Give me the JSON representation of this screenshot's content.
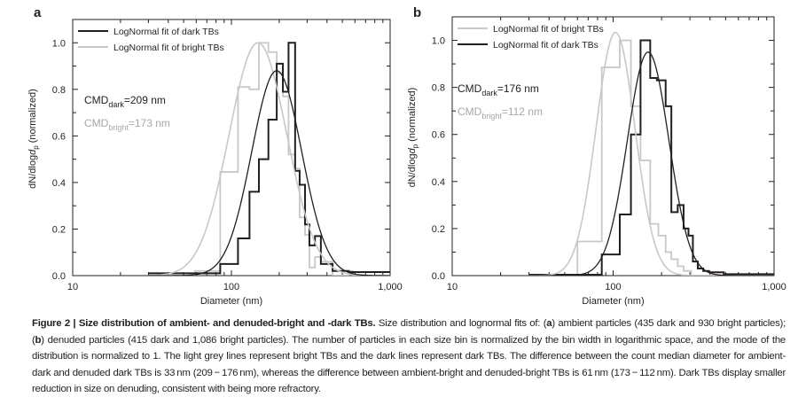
{
  "figure": {
    "caption_title": "Figure 2 | Size distribution of ambient- and denuded-bright and -dark TBs.",
    "caption_parts": [
      " Size distribution and lognormal fits of: (",
      "a",
      ") ambient particles (435 dark and 930 bright particles); (",
      "b",
      ") denuded particles (415 dark and 1,086 bright particles). The number of particles in each size bin is normalized by the bin width in logarithmic space, and the mode of the distribution is normalized to 1. The light grey lines represent bright TBs and the dark lines represent dark TBs. The difference between the count median diameter for ambient-dark and denuded dark TBs is 33 nm (209 − 176 nm), whereas the difference between ambient-bright and denuded-bright TBs is 61 nm (173 − 112 nm). Dark TBs display smaller reduction in size on denuding, consistent with being more refractory."
    ]
  },
  "colors": {
    "dark": "#231f20",
    "bright": "#c8c8c8",
    "bright_text": "#a8a8a8"
  },
  "chart_data": [
    {
      "panel": "a",
      "type": "line",
      "xlabel": "Diameter (nm)",
      "ylabel_parts": [
        "dN/dlog",
        "d",
        "p",
        " (normalized)"
      ],
      "xscale": "log",
      "xlim": [
        10,
        1000
      ],
      "ylim": [
        0,
        1.1
      ],
      "xticks": [
        10,
        100,
        1000
      ],
      "xtick_labels": [
        "10",
        "100",
        "1,000"
      ],
      "yticks": [
        0,
        0.2,
        0.4,
        0.6,
        0.8,
        1.0
      ],
      "ytick_labels": [
        "0.0",
        "0.2",
        "0.4",
        "0.6",
        "0.8",
        "1.0"
      ],
      "legend_placement": "top-left",
      "legend": [
        {
          "series": "dark",
          "label": "LogNormal fit of dark TBs"
        },
        {
          "series": "bright",
          "label": "LogNormal fit of bright TBs"
        }
      ],
      "annotations": [
        {
          "series": "dark",
          "main": "CMD",
          "sub": "dark",
          "rest": "=209 nm"
        },
        {
          "series": "bright",
          "main": "CMD",
          "sub": "bright",
          "rest": "=173 nm"
        }
      ],
      "histograms": {
        "dark": {
          "edges": [
            30,
            85,
            110,
            130,
            149,
            171,
            193,
            211,
            229,
            252,
            269,
            291,
            310,
            336,
            366,
            434,
            549,
            1000
          ],
          "values": [
            0.01,
            0.05,
            0.16,
            0.36,
            0.5,
            0.67,
            0.91,
            0.79,
            1.0,
            0.45,
            0.39,
            0.22,
            0.13,
            0.17,
            0.05,
            0.02,
            0.015
          ]
        },
        "bright": {
          "edges": [
            30,
            59,
            85,
            110,
            130,
            149,
            171,
            193,
            211,
            229,
            252,
            269,
            291,
            310,
            336,
            366,
            434,
            549,
            580,
            1000
          ],
          "values": [
            0.0,
            0.02,
            0.445,
            0.81,
            0.8,
            1.0,
            0.96,
            0.87,
            0.77,
            0.52,
            0.46,
            0.25,
            0.175,
            0.035,
            0.08,
            0.06,
            0.0,
            0.02,
            0.0
          ]
        }
      },
      "fits": {
        "dark": {
          "mode_nm": 193,
          "peak": 0.88,
          "sigma_log10": 0.157
        },
        "bright": {
          "mode_nm": 147,
          "peak": 1.0,
          "sigma_log10": 0.182
        }
      }
    },
    {
      "panel": "b",
      "type": "line",
      "xlabel": "Diameter (nm)",
      "ylabel_parts": [
        "dN/dlog",
        "d",
        "p",
        " (normalized)"
      ],
      "xscale": "log",
      "xlim": [
        10,
        1000
      ],
      "ylim": [
        0,
        1.1
      ],
      "xticks": [
        10,
        100,
        1000
      ],
      "xtick_labels": [
        "10",
        "100",
        "1,000"
      ],
      "yticks": [
        0,
        0.2,
        0.4,
        0.6,
        0.8,
        1.0
      ],
      "ytick_labels": [
        "0.0",
        "0.2",
        "0.4",
        "0.6",
        "0.8",
        "1.0"
      ],
      "legend_placement": "top-left",
      "legend": [
        {
          "series": "bright",
          "label": "LogNormal fit of bright TBs"
        },
        {
          "series": "dark",
          "label": "LogNormal fit of dark TBs"
        }
      ],
      "annotations": [
        {
          "series": "dark",
          "main": "CMD",
          "sub": "dark",
          "rest": "=176 nm"
        },
        {
          "series": "bright",
          "main": "CMD",
          "sub": "bright",
          "rest": "=112 nm"
        }
      ],
      "histograms": {
        "dark": {
          "edges": [
            30,
            85,
            110,
            129,
            148,
            170,
            187,
            212,
            230,
            252,
            274,
            294,
            313,
            336,
            363,
            395,
            487,
            1000
          ],
          "values": [
            0.004,
            0.09,
            0.26,
            0.6,
            1.0,
            0.84,
            0.83,
            0.72,
            0.27,
            0.3,
            0.2,
            0.17,
            0.06,
            0.03,
            0.02,
            0.014,
            0.006
          ]
        },
        "bright": {
          "edges": [
            30,
            60,
            85,
            110,
            129,
            148,
            170,
            191,
            212,
            230,
            252,
            274,
            306,
            1000
          ],
          "values": [
            0.0,
            0.145,
            0.885,
            1.0,
            0.72,
            0.49,
            0.22,
            0.17,
            0.1,
            0.07,
            0.04,
            0.02,
            0.0
          ]
        }
      },
      "fits": {
        "bright": {
          "mode_nm": 103.5,
          "peak": 1.034,
          "sigma_log10": 0.121
        },
        "dark": {
          "mode_nm": 165,
          "peak": 0.95,
          "sigma_log10": 0.129
        }
      }
    }
  ]
}
